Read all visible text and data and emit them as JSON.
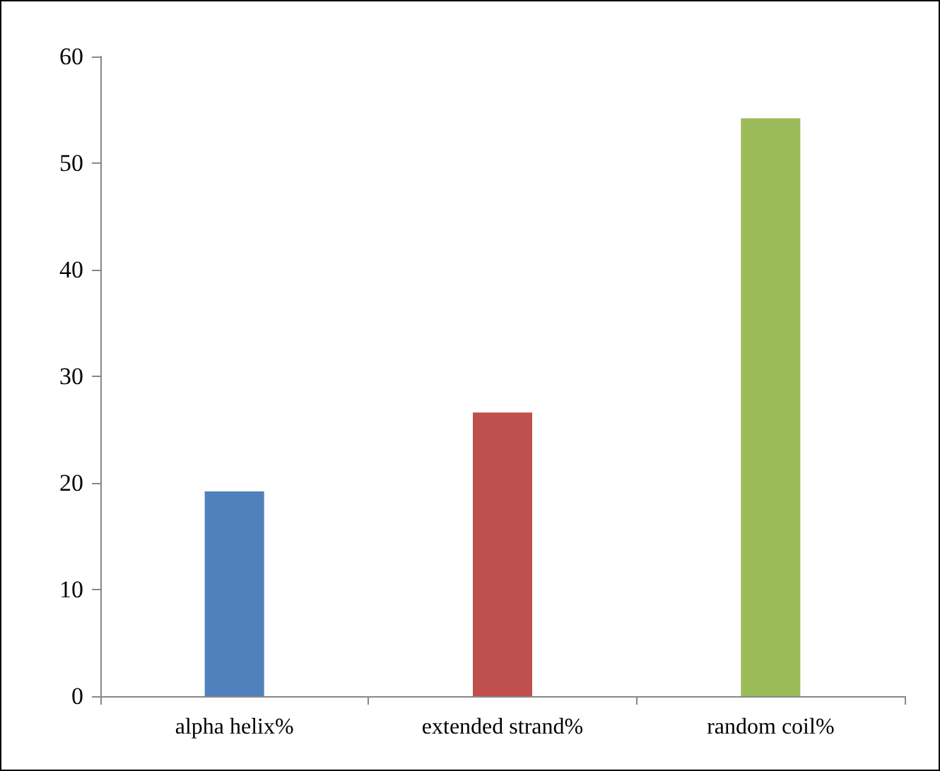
{
  "chart_data": {
    "type": "bar",
    "categories": [
      "alpha helix%",
      "extended strand%",
      "random coil%"
    ],
    "values": [
      19.2,
      26.6,
      54.2
    ],
    "colors": [
      "#4f81bd",
      "#c0504d",
      "#9bbb59"
    ],
    "ylim": [
      0,
      60
    ],
    "yticks": [
      0,
      10,
      20,
      30,
      40,
      50,
      60
    ],
    "grid": false
  }
}
